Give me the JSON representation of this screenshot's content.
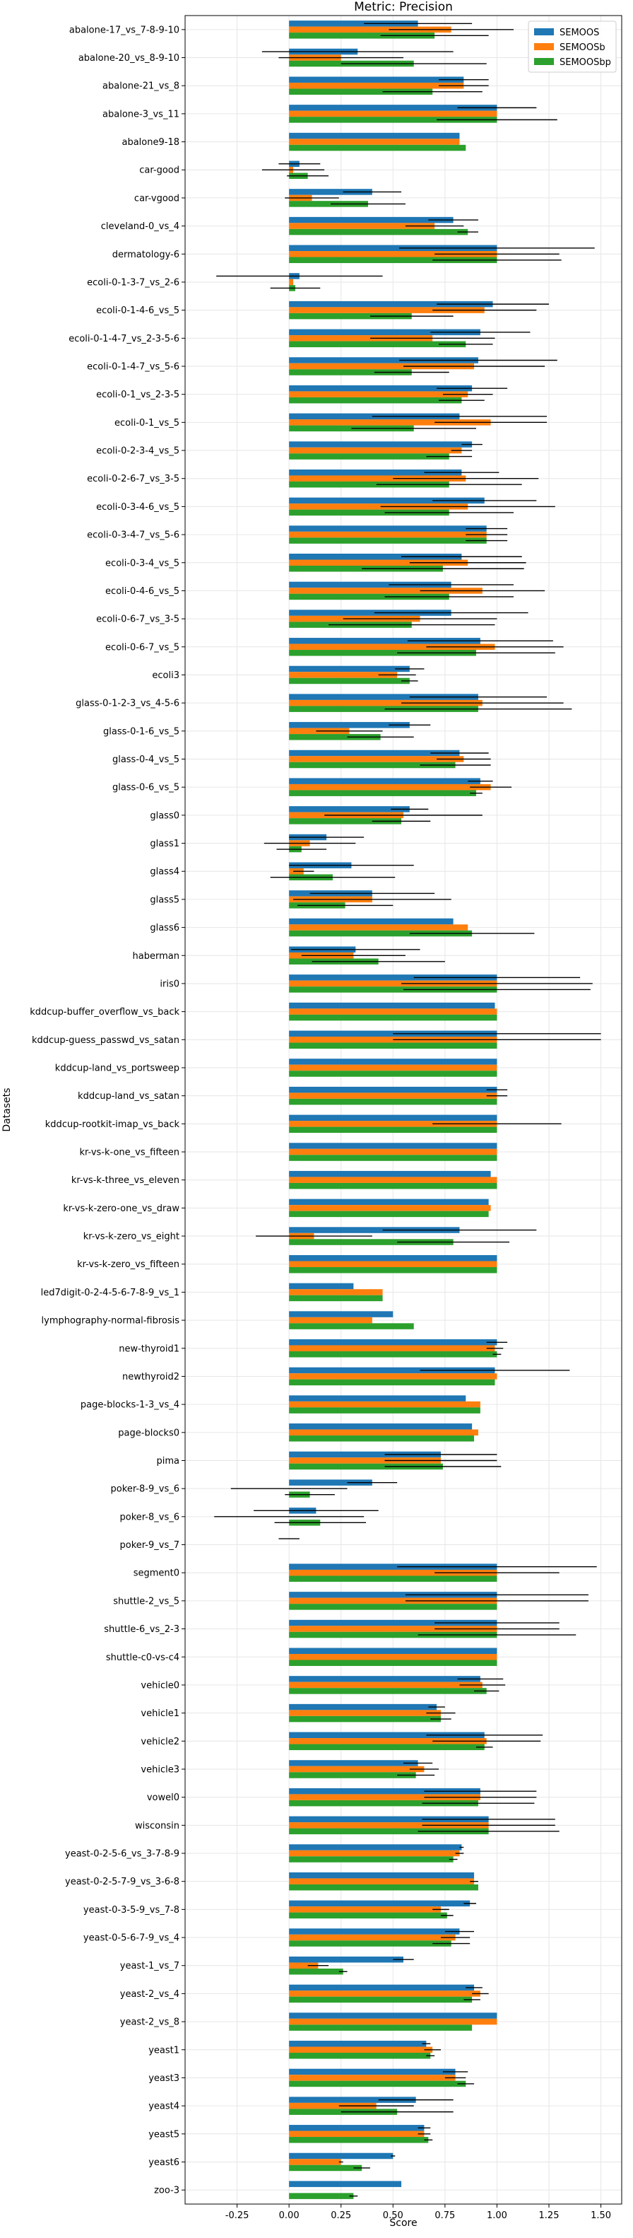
{
  "chart_data": {
    "type": "bar",
    "orientation": "horizontal",
    "title": "Metric: Precision",
    "xlabel": "Score",
    "ylabel": "Datasets",
    "xlim": [
      -0.5,
      1.6
    ],
    "xticks": [
      "-0.25",
      "0.00",
      "0.25",
      "0.50",
      "0.75",
      "1.00",
      "1.25",
      "1.50"
    ],
    "grid": true,
    "legend_position": "top-right",
    "colors": [
      "#1f77b4",
      "#ff7f0e",
      "#2ca02c"
    ],
    "categories": [
      "abalone-17_vs_7-8-9-10",
      "abalone-20_vs_8-9-10",
      "abalone-21_vs_8",
      "abalone-3_vs_11",
      "abalone9-18",
      "car-good",
      "car-vgood",
      "cleveland-0_vs_4",
      "dermatology-6",
      "ecoli-0-1-3-7_vs_2-6",
      "ecoli-0-1-4-6_vs_5",
      "ecoli-0-1-4-7_vs_2-3-5-6",
      "ecoli-0-1-4-7_vs_5-6",
      "ecoli-0-1_vs_2-3-5",
      "ecoli-0-1_vs_5",
      "ecoli-0-2-3-4_vs_5",
      "ecoli-0-2-6-7_vs_3-5",
      "ecoli-0-3-4-6_vs_5",
      "ecoli-0-3-4-7_vs_5-6",
      "ecoli-0-3-4_vs_5",
      "ecoli-0-4-6_vs_5",
      "ecoli-0-6-7_vs_3-5",
      "ecoli-0-6-7_vs_5",
      "ecoli3",
      "glass-0-1-2-3_vs_4-5-6",
      "glass-0-1-6_vs_5",
      "glass-0-4_vs_5",
      "glass-0-6_vs_5",
      "glass0",
      "glass1",
      "glass4",
      "glass5",
      "glass6",
      "haberman",
      "iris0",
      "kddcup-buffer_overflow_vs_back",
      "kddcup-guess_passwd_vs_satan",
      "kddcup-land_vs_portsweep",
      "kddcup-land_vs_satan",
      "kddcup-rootkit-imap_vs_back",
      "kr-vs-k-one_vs_fifteen",
      "kr-vs-k-three_vs_eleven",
      "kr-vs-k-zero-one_vs_draw",
      "kr-vs-k-zero_vs_eight",
      "kr-vs-k-zero_vs_fifteen",
      "led7digit-0-2-4-5-6-7-8-9_vs_1",
      "lymphography-normal-fibrosis",
      "new-thyroid1",
      "newthyroid2",
      "page-blocks-1-3_vs_4",
      "page-blocks0",
      "pima",
      "poker-8-9_vs_6",
      "poker-8_vs_6",
      "poker-9_vs_7",
      "segment0",
      "shuttle-2_vs_5",
      "shuttle-6_vs_2-3",
      "shuttle-c0-vs-c4",
      "vehicle0",
      "vehicle1",
      "vehicle2",
      "vehicle3",
      "vowel0",
      "wisconsin",
      "yeast-0-2-5-6_vs_3-7-8-9",
      "yeast-0-2-5-7-9_vs_3-6-8",
      "yeast-0-3-5-9_vs_7-8",
      "yeast-0-5-6-7-9_vs_4",
      "yeast-1_vs_7",
      "yeast-2_vs_4",
      "yeast-2_vs_8",
      "yeast1",
      "yeast3",
      "yeast4",
      "yeast5",
      "yeast6",
      "zoo-3"
    ],
    "series": [
      {
        "name": "SEMOOS",
        "values": [
          0.62,
          0.33,
          0.84,
          1.0,
          0.82,
          0.05,
          0.4,
          0.79,
          1.0,
          0.05,
          0.98,
          0.92,
          0.91,
          0.88,
          0.82,
          0.88,
          0.83,
          0.94,
          0.95,
          0.83,
          0.78,
          0.78,
          0.92,
          0.58,
          0.91,
          0.58,
          0.82,
          0.92,
          0.58,
          0.18,
          0.3,
          0.4,
          0.79,
          0.32,
          1.0,
          0.99,
          1.0,
          1.0,
          1.0,
          1.0,
          1.0,
          0.97,
          0.96,
          0.82,
          1.0,
          0.31,
          0.5,
          1.0,
          0.99,
          0.85,
          0.88,
          0.73,
          0.4,
          0.13,
          0.0,
          1.0,
          1.0,
          1.0,
          1.0,
          0.92,
          0.71,
          0.94,
          0.62,
          0.92,
          0.96,
          0.83,
          0.89,
          0.87,
          0.82,
          0.55,
          0.89,
          1.0,
          0.66,
          0.8,
          0.61,
          0.65,
          0.5,
          0.54
        ],
        "errors": [
          0.26,
          0.46,
          0.12,
          0.19,
          0.0,
          0.1,
          0.14,
          0.12,
          0.47,
          0.4,
          0.27,
          0.24,
          0.38,
          0.17,
          0.42,
          0.05,
          0.18,
          0.25,
          0.1,
          0.29,
          0.3,
          0.37,
          0.35,
          0.07,
          0.33,
          0.1,
          0.14,
          0.06,
          0.09,
          0.18,
          0.3,
          0.3,
          0.0,
          0.31,
          0.4,
          0.0,
          0.5,
          0.0,
          0.05,
          0.0,
          0.0,
          0.0,
          0.0,
          0.37,
          0.0,
          0.0,
          0.0,
          0.05,
          0.36,
          0.0,
          0.0,
          0.27,
          0.12,
          0.3,
          0.05,
          0.48,
          0.44,
          0.3,
          0.0,
          0.11,
          0.04,
          0.28,
          0.07,
          0.27,
          0.32,
          0.01,
          0.0,
          0.03,
          0.07,
          0.05,
          0.04,
          0.0,
          0.02,
          0.06,
          0.18,
          0.03,
          0.01,
          0.0
        ]
      },
      {
        "name": "SEMOOSb",
        "values": [
          0.78,
          0.25,
          0.84,
          1.0,
          0.82,
          0.02,
          0.11,
          0.7,
          1.0,
          0.02,
          0.94,
          0.69,
          0.89,
          0.86,
          0.97,
          0.83,
          0.85,
          0.86,
          0.95,
          0.86,
          0.93,
          0.63,
          0.99,
          0.52,
          0.93,
          0.29,
          0.84,
          0.97,
          0.55,
          0.1,
          0.07,
          0.4,
          0.86,
          0.31,
          1.0,
          1.0,
          1.0,
          1.0,
          1.0,
          1.0,
          1.0,
          1.0,
          0.97,
          0.12,
          1.0,
          0.45,
          0.4,
          0.99,
          1.0,
          0.92,
          0.91,
          0.73,
          0.0,
          0.0,
          0.0,
          1.0,
          1.0,
          1.0,
          1.0,
          0.93,
          0.73,
          0.95,
          0.65,
          0.92,
          0.96,
          0.82,
          0.89,
          0.73,
          0.8,
          0.14,
          0.92,
          1.0,
          0.69,
          0.8,
          0.42,
          0.65,
          0.25,
          0.0
        ],
        "errors": [
          0.3,
          0.3,
          0.12,
          0.0,
          0.0,
          0.15,
          0.13,
          0.14,
          0.3,
          0.0,
          0.25,
          0.3,
          0.34,
          0.12,
          0.27,
          0.05,
          0.35,
          0.42,
          0.1,
          0.28,
          0.3,
          0.37,
          0.33,
          0.09,
          0.39,
          0.16,
          0.13,
          0.1,
          0.38,
          0.22,
          0.05,
          0.38,
          0.0,
          0.25,
          0.46,
          0.0,
          0.5,
          0.0,
          0.05,
          0.31,
          0.0,
          0.0,
          0.0,
          0.28,
          0.0,
          0.0,
          0.0,
          0.04,
          0.0,
          0.0,
          0.0,
          0.27,
          0.28,
          0.36,
          0.0,
          0.3,
          0.44,
          0.3,
          0.0,
          0.11,
          0.07,
          0.26,
          0.07,
          0.27,
          0.32,
          0.02,
          0.02,
          0.04,
          0.07,
          0.05,
          0.04,
          0.0,
          0.04,
          0.05,
          0.18,
          0.03,
          0.01,
          0.0
        ]
      },
      {
        "name": "SEMOOSbp",
        "values": [
          0.7,
          0.6,
          0.69,
          1.0,
          0.85,
          0.09,
          0.38,
          0.86,
          1.0,
          0.03,
          0.59,
          0.85,
          0.59,
          0.83,
          0.6,
          0.77,
          0.77,
          0.77,
          0.95,
          0.74,
          0.77,
          0.59,
          0.9,
          0.58,
          0.91,
          0.44,
          0.8,
          0.9,
          0.54,
          0.06,
          0.21,
          0.27,
          0.88,
          0.43,
          1.0,
          1.0,
          1.0,
          1.0,
          1.0,
          1.0,
          1.0,
          1.0,
          0.96,
          0.79,
          1.0,
          0.45,
          0.6,
          1.0,
          0.99,
          0.92,
          0.89,
          0.74,
          0.1,
          0.15,
          0.0,
          1.0,
          1.0,
          1.0,
          1.0,
          0.95,
          0.73,
          0.94,
          0.61,
          0.91,
          0.96,
          0.79,
          0.91,
          0.76,
          0.78,
          0.26,
          0.88,
          0.88,
          0.68,
          0.85,
          0.52,
          0.67,
          0.35,
          0.31
        ],
        "errors": [
          0.26,
          0.35,
          0.24,
          0.29,
          0.0,
          0.1,
          0.18,
          0.05,
          0.31,
          0.12,
          0.2,
          0.13,
          0.18,
          0.11,
          0.3,
          0.11,
          0.35,
          0.31,
          0.1,
          0.39,
          0.31,
          0.4,
          0.38,
          0.04,
          0.45,
          0.16,
          0.17,
          0.03,
          0.14,
          0.12,
          0.3,
          0.23,
          0.3,
          0.32,
          0.45,
          0.0,
          0.0,
          0.0,
          0.0,
          0.0,
          0.0,
          0.0,
          0.0,
          0.27,
          0.0,
          0.0,
          0.0,
          0.02,
          0.0,
          0.0,
          0.0,
          0.28,
          0.12,
          0.22,
          0.0,
          0.0,
          0.0,
          0.38,
          0.0,
          0.06,
          0.05,
          0.04,
          0.09,
          0.27,
          0.34,
          0.02,
          0.0,
          0.03,
          0.09,
          0.02,
          0.04,
          0.0,
          0.02,
          0.04,
          0.27,
          0.02,
          0.04,
          0.02
        ]
      }
    ]
  }
}
